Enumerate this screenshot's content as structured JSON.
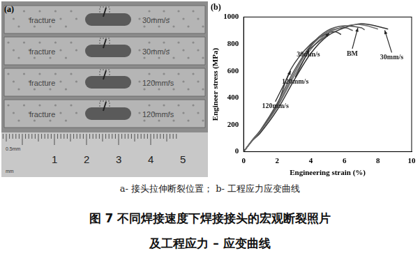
{
  "figure": {
    "panel_a": {
      "label": "(a)",
      "specimens": [
        {
          "note": "fracture",
          "speed": "30mm/s"
        },
        {
          "note": "fracture",
          "speed": "30mm/s"
        },
        {
          "note": "fracture",
          "speed": "120mm/s"
        },
        {
          "note": "fracture",
          "speed": "120mm/s"
        }
      ],
      "ruler": {
        "numbers": [
          1,
          2,
          3,
          4,
          5
        ],
        "scale_text": "0.5mm",
        "unit": "mm"
      }
    },
    "caption": {
      "sub": "a- 接头拉伸断裂位置； b- 工程应力应变曲线",
      "title_lines": [
        "图 7   不同焊接速度下焊接接头的宏观断裂照片",
        "及工程应力 – 应变曲线"
      ]
    }
  },
  "chart_data": {
    "type": "line",
    "title": "(b)",
    "x_label": "Engineering strain (%)",
    "y_label": "Engineer stress (MPa)",
    "xlim": [
      0,
      10
    ],
    "xticks": [
      0,
      2,
      4,
      6,
      8,
      10
    ],
    "ylim": [
      0,
      1000
    ],
    "yticks": [
      0,
      200,
      400,
      600,
      800,
      1000
    ],
    "grid": false,
    "series": [
      {
        "name": "BM",
        "color": "#707070",
        "x": [
          0,
          0.5,
          1,
          2,
          3,
          4,
          5,
          6,
          6.8,
          7.5,
          8
        ],
        "values": [
          0,
          80,
          150,
          330,
          560,
          760,
          880,
          930,
          945,
          930,
          910
        ]
      },
      {
        "name": "30mm/s",
        "color": "#303030",
        "x": [
          0,
          0.5,
          1,
          2,
          3,
          4,
          5,
          6,
          7,
          8,
          8.6
        ],
        "values": [
          0,
          80,
          140,
          310,
          530,
          730,
          860,
          920,
          950,
          930,
          910
        ]
      },
      {
        "name": "30mm/s",
        "color": "#505050",
        "x": [
          0,
          0.5,
          1,
          2,
          3,
          4,
          5,
          6,
          7,
          7.2
        ],
        "values": [
          0,
          85,
          160,
          360,
          600,
          790,
          900,
          935,
          920,
          905
        ]
      },
      {
        "name": "120mm/s",
        "color": "#606060",
        "x": [
          0,
          0.5,
          1,
          2,
          3,
          4,
          5,
          6,
          6.5
        ],
        "values": [
          0,
          80,
          150,
          340,
          580,
          780,
          890,
          920,
          900
        ]
      },
      {
        "name": "120mm/s",
        "color": "#404040",
        "x": [
          0,
          0.5,
          1,
          2,
          2.8,
          4,
          5,
          5.5,
          5.8
        ],
        "values": [
          0,
          80,
          155,
          350,
          610,
          800,
          880,
          890,
          870
        ]
      }
    ],
    "annotations": [
      {
        "text": "30mm/s",
        "x": 5.1,
        "y": 890
      },
      {
        "text": "BM",
        "x": 6.8,
        "y": 930
      },
      {
        "text": "30mm/s",
        "x": 8.4,
        "y": 912
      },
      {
        "text": "120mm/s",
        "x": 3.9,
        "y": 770
      },
      {
        "text": "120mm/s",
        "x": 2.8,
        "y": 610
      }
    ],
    "legend": false
  }
}
